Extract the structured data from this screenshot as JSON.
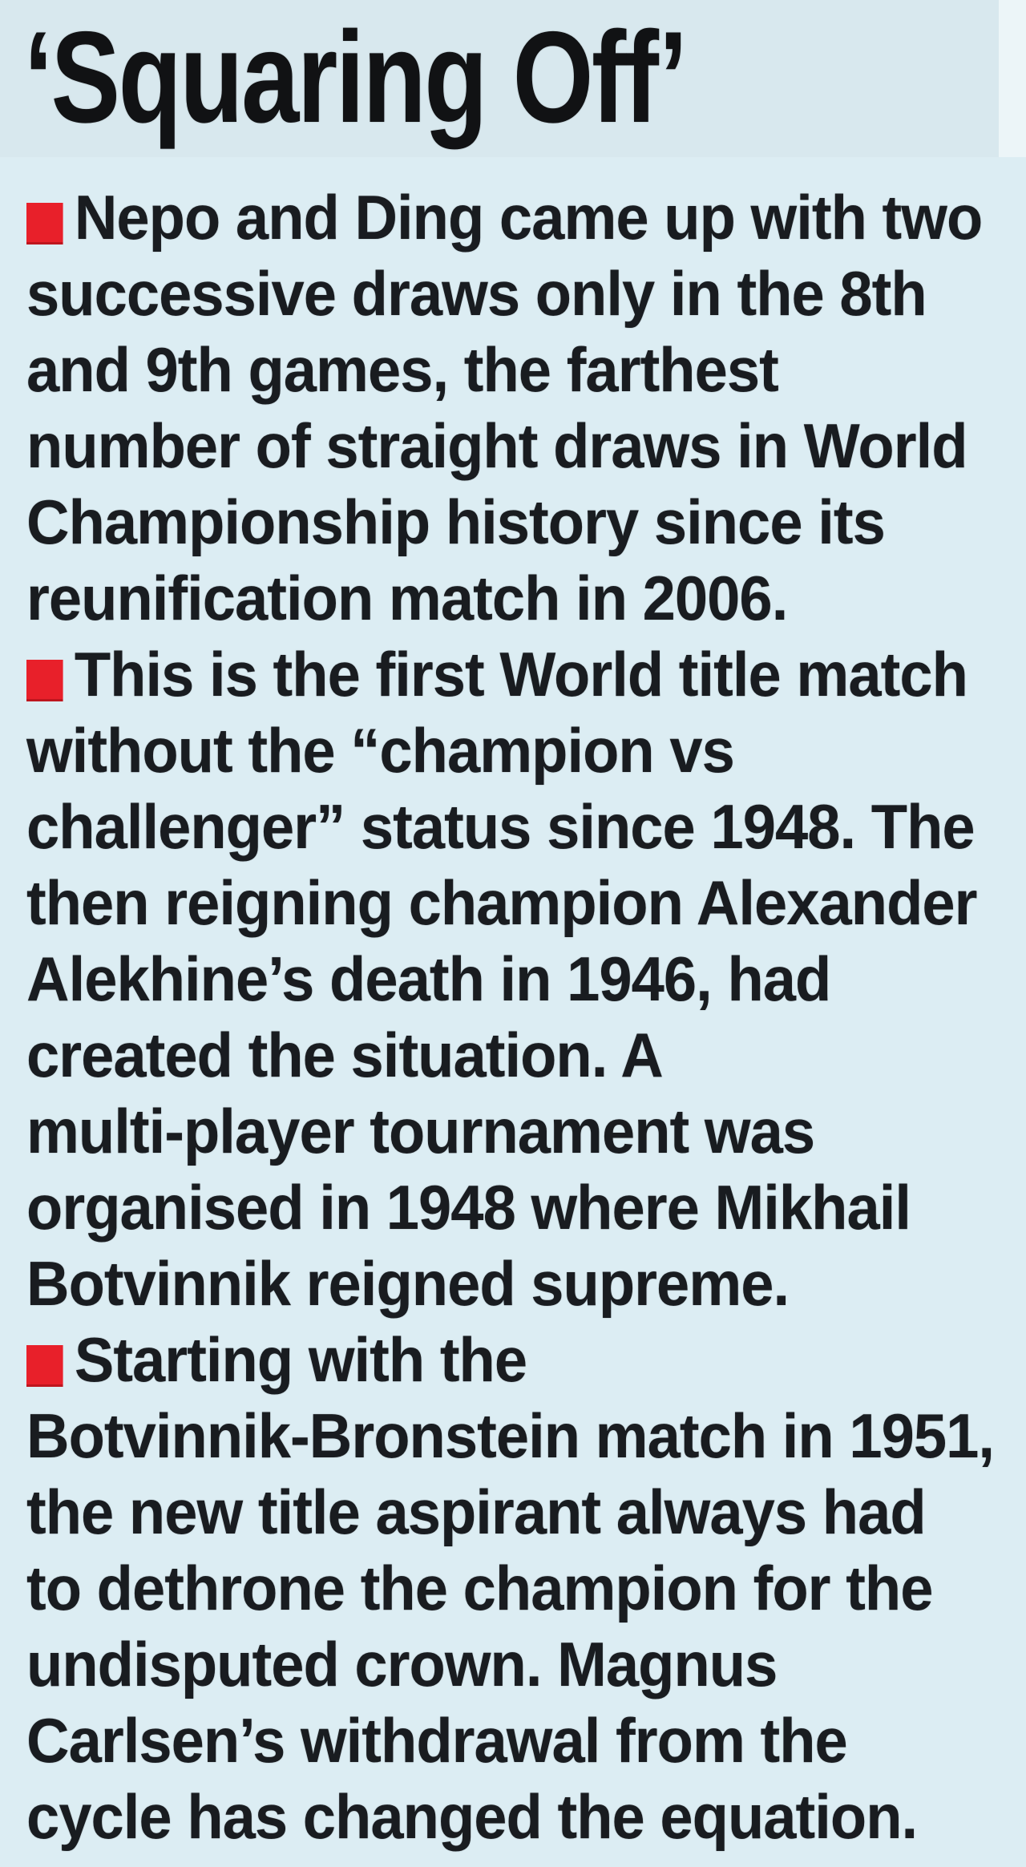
{
  "headline": "‘Squaring Off’",
  "bullets": [
    {
      "lines": [
        "Nepo and Ding came up with two",
        "successive draws only in the 8th",
        "and 9th games, the farthest",
        "number of straight draws in World",
        "Championship history since its",
        "reunification match in 2006."
      ]
    },
    {
      "lines": [
        "This is the first World title match",
        "without the “champion vs",
        "challenger” status since 1948. The",
        "then reigning champion Alexander",
        "Alekhine’s death in 1946, had",
        "created the situation. A",
        "multi-player tournament was",
        "organised in 1948 where Mikhail",
        "Botvinnik reigned supreme."
      ]
    },
    {
      "lines": [
        "Starting with the",
        "Botvinnik-Bronstein match in 1951,",
        "the new title aspirant always had",
        "to dethrone the champion for the",
        "undisputed crown. Magnus",
        "Carlsen’s withdrawal from the",
        "cycle has changed the equation."
      ]
    }
  ],
  "colors": {
    "background": "#dcedf3",
    "title_band": "#d8e8ee",
    "edge_strip": "#ecf5f8",
    "text": "#191c20",
    "bullet_red": "#e8202a"
  }
}
